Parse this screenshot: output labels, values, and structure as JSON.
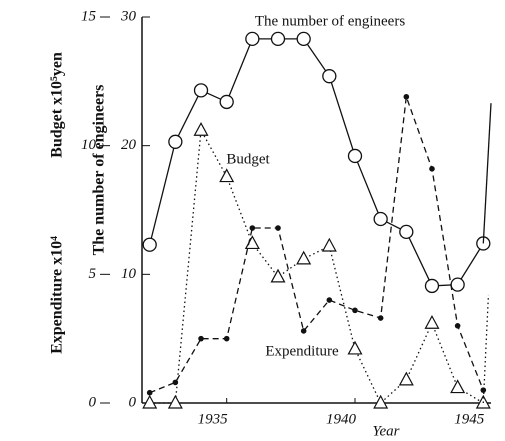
{
  "chart_data": {
    "type": "line",
    "x": [
      1932,
      1933,
      1934,
      1935,
      1936,
      1937,
      1938,
      1939,
      1940,
      1941,
      1942,
      1943,
      1944,
      1945
    ],
    "xlim": [
      1931.7,
      1945.3
    ],
    "xticks": [
      1935,
      1940,
      1945
    ],
    "x_label": "Year",
    "ylim": [
      0,
      15
    ],
    "yticks": [
      0,
      5,
      10,
      15
    ],
    "y_label": "Budget  x10⁵yen",
    "y_label_2": "Expenditure  x10⁴",
    "y2lim": [
      0,
      30
    ],
    "y2ticks": [
      0,
      10,
      20,
      30
    ],
    "y2_label": "The number of engineers",
    "series": [
      {
        "name": "The number of engineers",
        "axis": "y2",
        "color": "#111",
        "style": "solid",
        "marker": "circle",
        "values": [
          12.3,
          20.3,
          24.3,
          23.4,
          28.3,
          28.3,
          28.3,
          25.4,
          19.2,
          14.3,
          13.3,
          9.1,
          9.2,
          12.4
        ]
      },
      {
        "name": "Budget",
        "color": "#111",
        "style": "dotted",
        "marker": "triangle",
        "values": [
          0,
          0,
          10.6,
          8.8,
          6.2,
          4.9,
          5.6,
          6.1,
          2.1,
          0,
          0.9,
          3.1,
          0.6,
          0
        ]
      },
      {
        "name": "Expenditure",
        "color": "#111",
        "style": "dashed",
        "marker": "dot",
        "values": [
          0.4,
          0.8,
          2.5,
          2.5,
          6.8,
          6.8,
          2.8,
          4.0,
          3.6,
          3.3,
          11.9,
          9.1,
          3.0,
          0.5
        ]
      },
      {
        "axis": "y2",
        "color": "#111",
        "style": "solid",
        "marker": "none",
        "x": [
          1945,
          1945.3
        ],
        "values": [
          12.4,
          23.3
        ]
      },
      {
        "color": "#111",
        "style": "dotted",
        "marker": "none",
        "x": [
          1945,
          1945.2
        ],
        "values": [
          0,
          4.2
        ]
      }
    ]
  }
}
